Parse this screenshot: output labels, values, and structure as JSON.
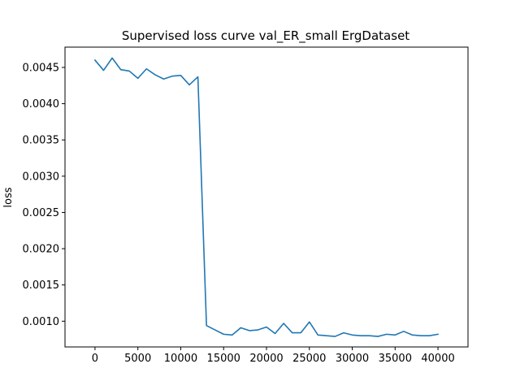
{
  "chart_data": {
    "type": "line",
    "title": "Supervised loss curve val_ER_small ErgDataset",
    "xlabel": "",
    "ylabel": "loss",
    "xlim": [
      -3500,
      43500
    ],
    "ylim": [
      0.000645,
      0.00478
    ],
    "xticks": [
      0,
      5000,
      10000,
      15000,
      20000,
      25000,
      30000,
      35000,
      40000
    ],
    "xtick_labels": [
      "0",
      "5000",
      "10000",
      "15000",
      "20000",
      "25000",
      "30000",
      "35000",
      "40000"
    ],
    "yticks": [
      0.001,
      0.0015,
      0.002,
      0.0025,
      0.003,
      0.0035,
      0.004,
      0.0045
    ],
    "ytick_labels": [
      "0.0010",
      "0.0015",
      "0.0020",
      "0.0025",
      "0.0030",
      "0.0035",
      "0.0040",
      "0.0045"
    ],
    "grid": false,
    "series": [
      {
        "color": "#1f77b4",
        "x": [
          0,
          1000,
          2000,
          3000,
          4000,
          5000,
          6000,
          7000,
          8000,
          9000,
          10000,
          11000,
          12000,
          13000,
          14000,
          15000,
          16000,
          17000,
          18000,
          19000,
          20000,
          21000,
          22000,
          23000,
          24000,
          25000,
          26000,
          27000,
          28000,
          29000,
          30000,
          31000,
          32000,
          33000,
          34000,
          35000,
          36000,
          37000,
          38000,
          39000,
          40000
        ],
        "y": [
          0.0046,
          0.00446,
          0.00463,
          0.00447,
          0.00445,
          0.00435,
          0.00448,
          0.0044,
          0.00434,
          0.00438,
          0.00439,
          0.00426,
          0.00437,
          0.00094,
          0.00088,
          0.00082,
          0.00081,
          0.00091,
          0.00087,
          0.00088,
          0.00092,
          0.00083,
          0.00097,
          0.00084,
          0.00084,
          0.00099,
          0.00081,
          0.0008,
          0.00079,
          0.00084,
          0.00081,
          0.0008,
          0.0008,
          0.00079,
          0.00082,
          0.00081,
          0.00086,
          0.00081,
          0.0008,
          0.0008,
          0.00082
        ]
      }
    ]
  }
}
